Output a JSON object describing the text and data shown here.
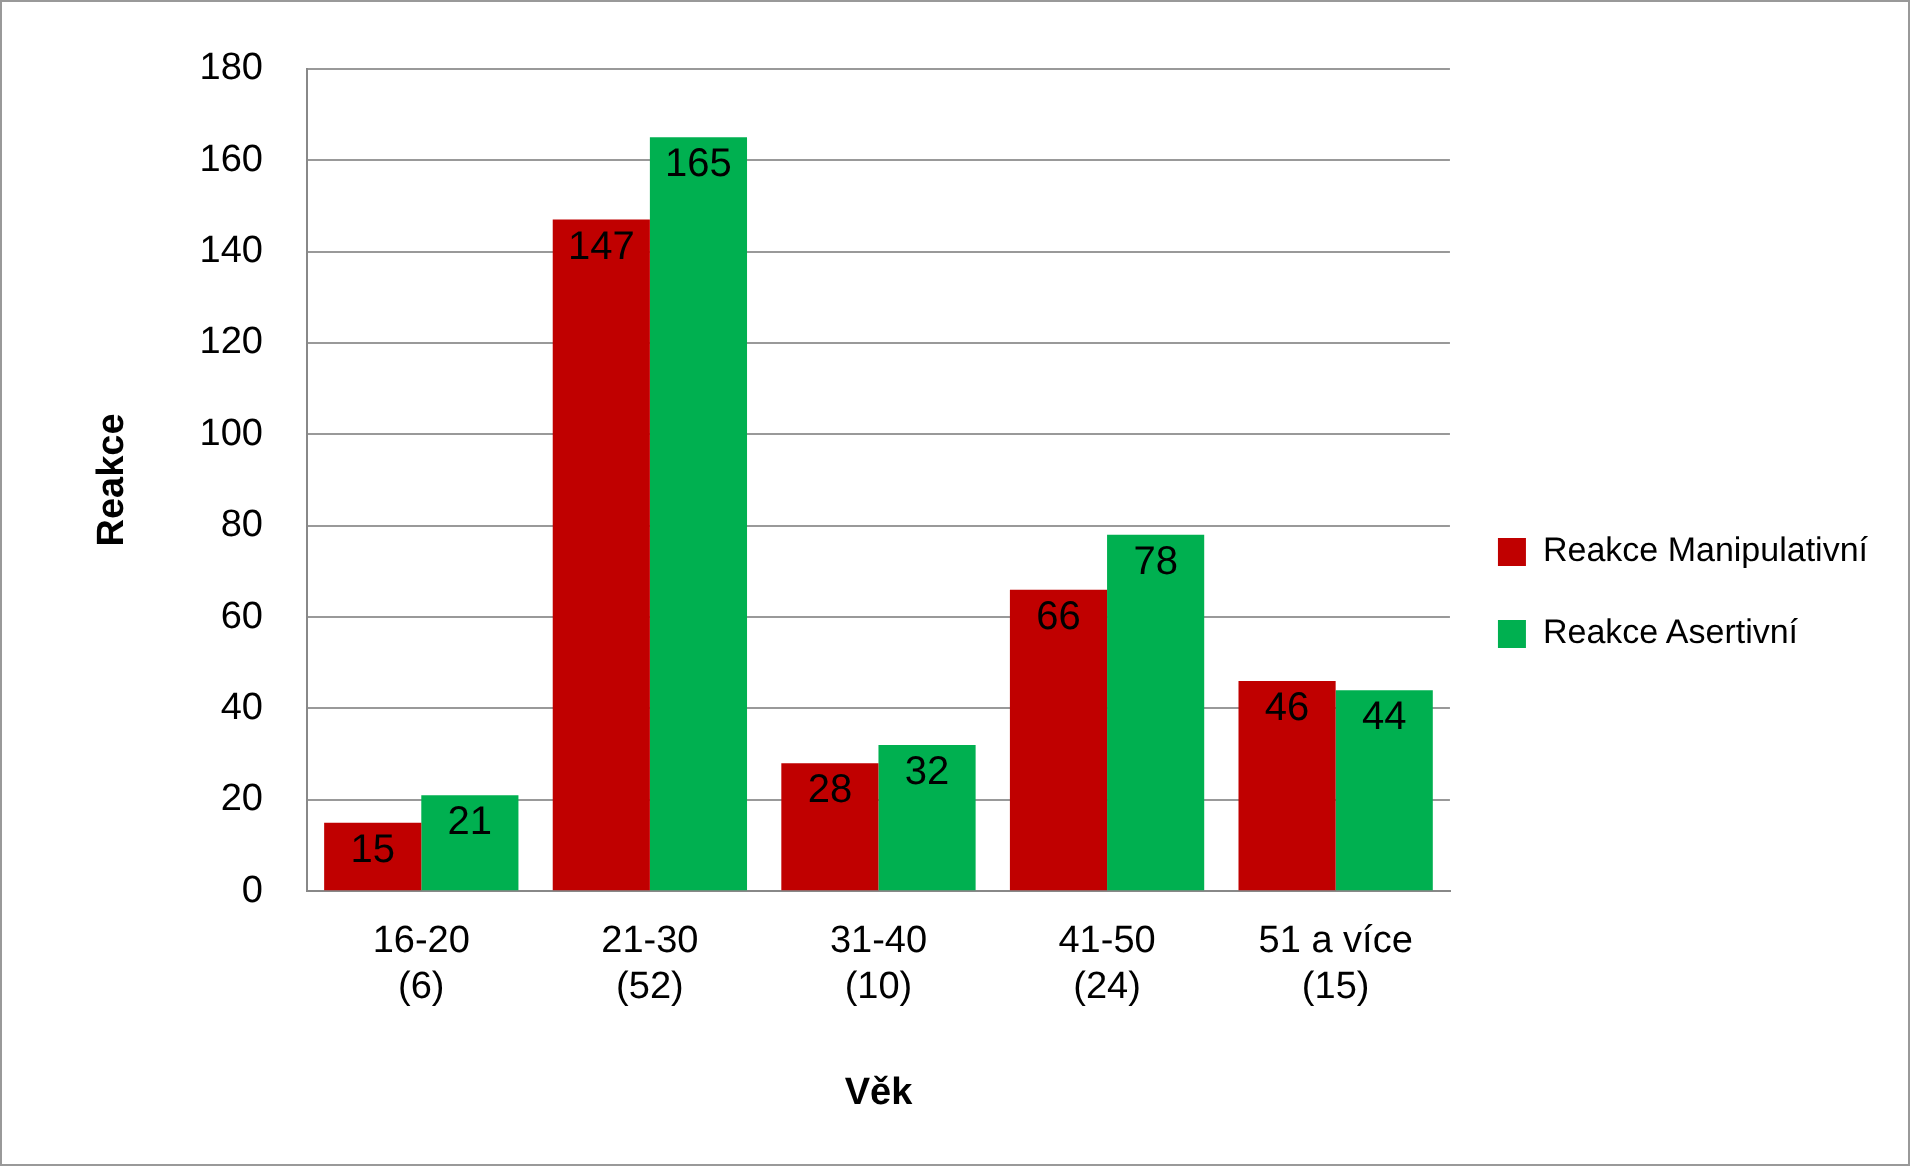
{
  "chart_data": {
    "type": "bar",
    "xlabel": "Věk",
    "ylabel": "Reakce",
    "categories": [
      "16-20\n(6)",
      "21-30\n(52)",
      "31-40\n(10)",
      "41-50\n(24)",
      "51 a více\n(15)"
    ],
    "series": [
      {
        "name": "Reakce Manipulativní",
        "color": "#c00000",
        "values": [
          15,
          147,
          28,
          66,
          46
        ]
      },
      {
        "name": "Reakce Asertivní",
        "color": "#00b050",
        "values": [
          21,
          165,
          32,
          78,
          44
        ]
      }
    ],
    "ylim": [
      0,
      180
    ],
    "yticks": [
      0,
      20,
      40,
      60,
      80,
      100,
      120,
      140,
      160,
      180
    ],
    "grid": "y",
    "legend": "right",
    "data_labels": true
  }
}
